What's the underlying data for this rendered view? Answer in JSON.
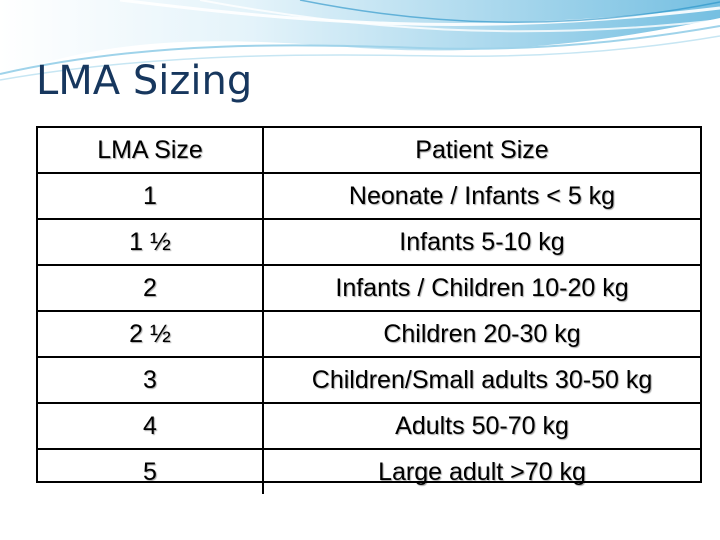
{
  "slide": {
    "title": "LMA Sizing"
  },
  "table": {
    "headers": [
      "LMA Size",
      "Patient Size"
    ],
    "rows": [
      {
        "size": "1",
        "patient": "Neonate / Infants < 5 kg"
      },
      {
        "size": "1 ½",
        "patient": "Infants 5-10 kg"
      },
      {
        "size": "2",
        "patient": "Infants / Children 10-20 kg"
      },
      {
        "size": "2 ½",
        "patient": "Children 20-30 kg"
      },
      {
        "size": "3",
        "patient": "Children/Small adults 30-50 kg"
      },
      {
        "size": "4",
        "patient": "Adults 50-70 kg"
      },
      {
        "size": "5",
        "patient": "Large adult >70 kg"
      }
    ]
  },
  "theme": {
    "title_color": "#17375e",
    "wave_colors": [
      "#1f8fc6",
      "#7cc3e3",
      "#cde9f5"
    ]
  }
}
